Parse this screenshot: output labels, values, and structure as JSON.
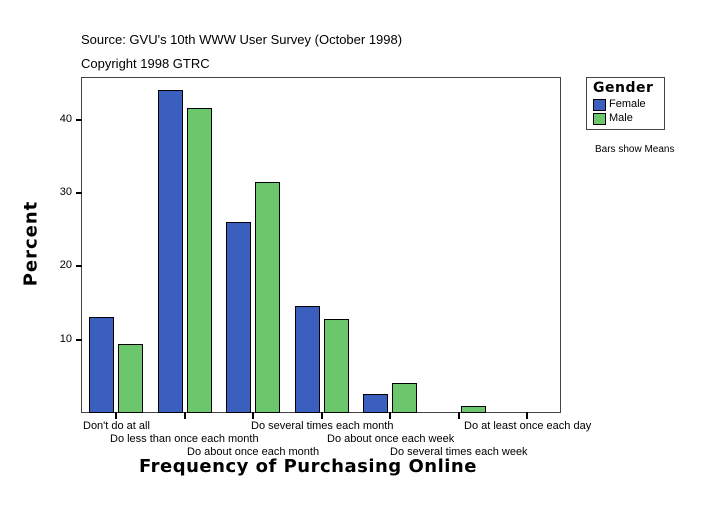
{
  "header": {
    "source": "Source: GVU's 10th WWW User Survey (October 1998)",
    "copyright": "Copyright 1998 GTRC"
  },
  "legend": {
    "title": "Gender",
    "items": [
      {
        "label": "Female",
        "color": "#3a5fbf"
      },
      {
        "label": "Male",
        "color": "#6cc76c"
      }
    ]
  },
  "note": "Bars show Means",
  "axes": {
    "ylabel": "Percent",
    "xlabel": "Frequency of Purchasing Online",
    "yticks": [
      "10",
      "20",
      "30",
      "40"
    ]
  },
  "chart_data": {
    "type": "bar",
    "title": "",
    "subtitle": "Source: GVU's 10th WWW User Survey (October 1998) / Copyright 1998 GTRC",
    "xlabel": "Frequency of Purchasing Online",
    "ylabel": "Percent",
    "ylim": [
      0,
      46
    ],
    "yticks": [
      10,
      20,
      30,
      40
    ],
    "grid": false,
    "legend_position": "right",
    "legend_title": "Gender",
    "annotations": [
      "Bars show Means"
    ],
    "categories": [
      "Don't do at all",
      "Do less than once each month",
      "Do about once each month",
      "Do several times each month",
      "Do about once each week",
      "Do several times each week",
      "Do at least once each day"
    ],
    "series": [
      {
        "name": "Female",
        "color": "#3a5fbf",
        "values": [
          13.1,
          44.0,
          26.0,
          14.6,
          2.6,
          0,
          0
        ]
      },
      {
        "name": "Male",
        "color": "#6cc76c",
        "values": [
          9.4,
          41.6,
          31.5,
          12.8,
          4.1,
          1.0,
          0
        ]
      }
    ]
  }
}
